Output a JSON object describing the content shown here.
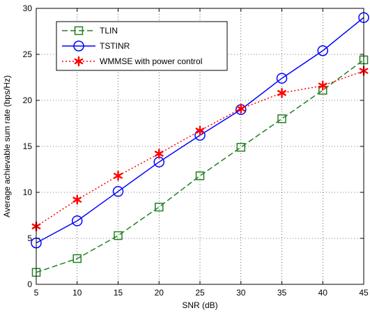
{
  "chart_data": {
    "type": "line",
    "title": "",
    "xlabel": "SNR (dB)",
    "ylabel": "Average achievable sum rate (bps/Hz)",
    "x": [
      5,
      10,
      15,
      20,
      25,
      30,
      35,
      40,
      45
    ],
    "xlim": [
      5,
      45
    ],
    "ylim": [
      0,
      30
    ],
    "xticks": [
      5,
      10,
      15,
      20,
      25,
      30,
      35,
      40,
      45
    ],
    "yticks": [
      0,
      5,
      10,
      15,
      20,
      25,
      30
    ],
    "grid": true,
    "legend_position": "top-left",
    "series": [
      {
        "name": "TLIN",
        "color": "#208020",
        "line_style": "dashed",
        "marker": "square",
        "values": [
          1.3,
          2.8,
          5.3,
          8.4,
          11.8,
          14.9,
          18.0,
          21.1,
          24.4
        ]
      },
      {
        "name": "TSTINR",
        "color": "#0000ff",
        "line_style": "solid",
        "marker": "circle",
        "values": [
          4.5,
          6.9,
          10.1,
          13.3,
          16.2,
          19.0,
          22.4,
          25.4,
          29.0
        ]
      },
      {
        "name": "WMMSE with power control",
        "color": "#ff0000",
        "line_style": "dotted",
        "marker": "asterisk",
        "values": [
          6.3,
          9.2,
          11.8,
          14.2,
          16.7,
          19.1,
          20.8,
          21.6,
          23.2
        ]
      }
    ]
  }
}
